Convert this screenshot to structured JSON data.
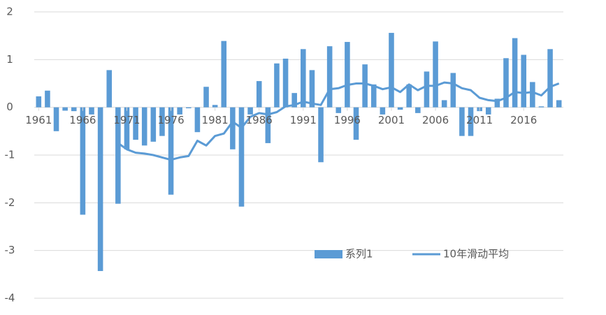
{
  "chart_data": {
    "type": "bar",
    "categories": [
      "1961",
      null,
      null,
      null,
      null,
      "1966",
      null,
      null,
      null,
      null,
      "1971",
      null,
      null,
      null,
      null,
      "1976",
      null,
      null,
      null,
      null,
      "1981",
      null,
      null,
      null,
      null,
      "1986",
      null,
      null,
      null,
      null,
      "1991",
      null,
      null,
      null,
      null,
      "1996",
      null,
      null,
      null,
      null,
      "2001",
      null,
      null,
      null,
      null,
      "2006",
      null,
      null,
      null,
      null,
      "2011",
      null,
      null,
      null,
      null,
      "2016",
      null,
      null,
      null,
      null
    ],
    "series": [
      {
        "name": "系列1",
        "type": "bar",
        "color": "#5b9bd5",
        "values": [
          0.23,
          0.35,
          -0.5,
          -0.07,
          -0.08,
          -2.25,
          -0.15,
          -3.43,
          0.78,
          -2.02,
          -0.88,
          -0.68,
          -0.8,
          -0.72,
          -0.6,
          -1.83,
          -0.15,
          -0.02,
          -0.52,
          0.43,
          0.05,
          1.39,
          -0.88,
          -2.08,
          -0.15,
          0.55,
          -0.75,
          0.92,
          1.02,
          0.3,
          1.22,
          0.78,
          -1.15,
          1.28,
          -0.12,
          1.37,
          -0.68,
          0.9,
          0.48,
          -0.15,
          1.56,
          -0.05,
          0.48,
          -0.12,
          0.75,
          1.38,
          0.15,
          0.72,
          -0.6,
          -0.6,
          -0.08,
          -0.15,
          0.18,
          1.03,
          1.45,
          1.1,
          0.53,
          0.02,
          1.22,
          0.15
        ]
      },
      {
        "name": "10年滑动平均",
        "type": "line",
        "color": "#5b9bd5",
        "values": [
          null,
          null,
          null,
          null,
          null,
          null,
          null,
          null,
          null,
          -0.75,
          -0.88,
          -0.95,
          -0.97,
          -1.0,
          -1.05,
          -1.1,
          -1.05,
          -1.02,
          -0.7,
          -0.8,
          -0.6,
          -0.55,
          -0.3,
          -0.43,
          -0.2,
          -0.12,
          -0.15,
          -0.1,
          0.02,
          0.05,
          0.12,
          0.08,
          0.05,
          0.38,
          0.4,
          0.47,
          0.5,
          0.5,
          0.45,
          0.38,
          0.42,
          0.32,
          0.48,
          0.36,
          0.45,
          0.45,
          0.52,
          0.5,
          0.4,
          0.36,
          0.2,
          0.15,
          0.13,
          0.2,
          0.32,
          0.3,
          0.32,
          0.25,
          0.43,
          0.5
        ]
      }
    ],
    "ylim": [
      -4,
      2
    ],
    "yticks": [
      -4,
      -3,
      -2,
      -1,
      0,
      1,
      2
    ],
    "grid": true,
    "legend": "lower right"
  }
}
